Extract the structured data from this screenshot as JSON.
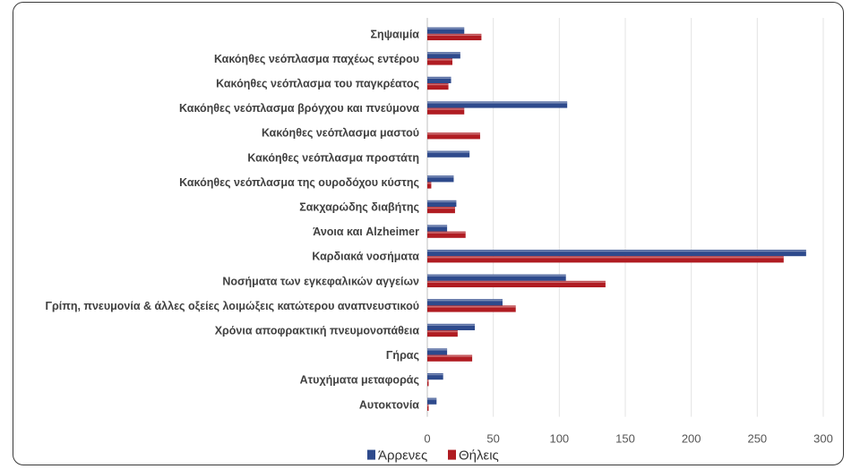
{
  "chart_data": {
    "type": "bar",
    "orientation": "horizontal",
    "categories": [
      "Σηψαιμία",
      "Κακόηθες νεόπλασμα παχέως εντέρου",
      "Κακόηθες νεόπλασμα του παγκρέατος",
      "Κακόηθες νεόπλασμα βρόγχου και πνεύμονα",
      "Κακόηθες νεόπλασμα μαστού",
      "Κακόηθες νεόπλασμα προστάτη",
      "Κακόηθες νεόπλασμα της ουροδόχου κύστης",
      "Σακχαρώδης διαβήτης",
      "Άνοια και Alzheimer",
      "Καρδιακά νοσήματα",
      "Νοσήματα των εγκεφαλικών αγγείων",
      "Γρίπη, πνευμονία & άλλες οξείες λοιμώξεις κατώτερου αναπνευστικού",
      "Χρόνια αποφρακτική πνευμονοπάθεια",
      "Γήρας",
      "Ατυχήματα μεταφοράς",
      "Αυτοκτονία"
    ],
    "series": [
      {
        "name": "Άρρενες",
        "color": "#2e4a8c",
        "values": [
          28,
          25,
          18,
          106,
          0,
          32,
          20,
          22,
          15,
          287,
          105,
          57,
          36,
          15,
          12,
          7
        ]
      },
      {
        "name": "Θήλεις",
        "color": "#b01c22",
        "values": [
          41,
          19,
          16,
          28,
          40,
          0,
          3,
          21,
          29,
          270,
          135,
          67,
          23,
          34,
          1,
          1
        ]
      }
    ],
    "title": "",
    "xlabel": "",
    "ylabel": "",
    "xlim": [
      0,
      300
    ],
    "xticks": [
      0,
      50,
      100,
      150,
      200,
      250,
      300
    ],
    "grid": true,
    "legend_position": "bottom"
  }
}
